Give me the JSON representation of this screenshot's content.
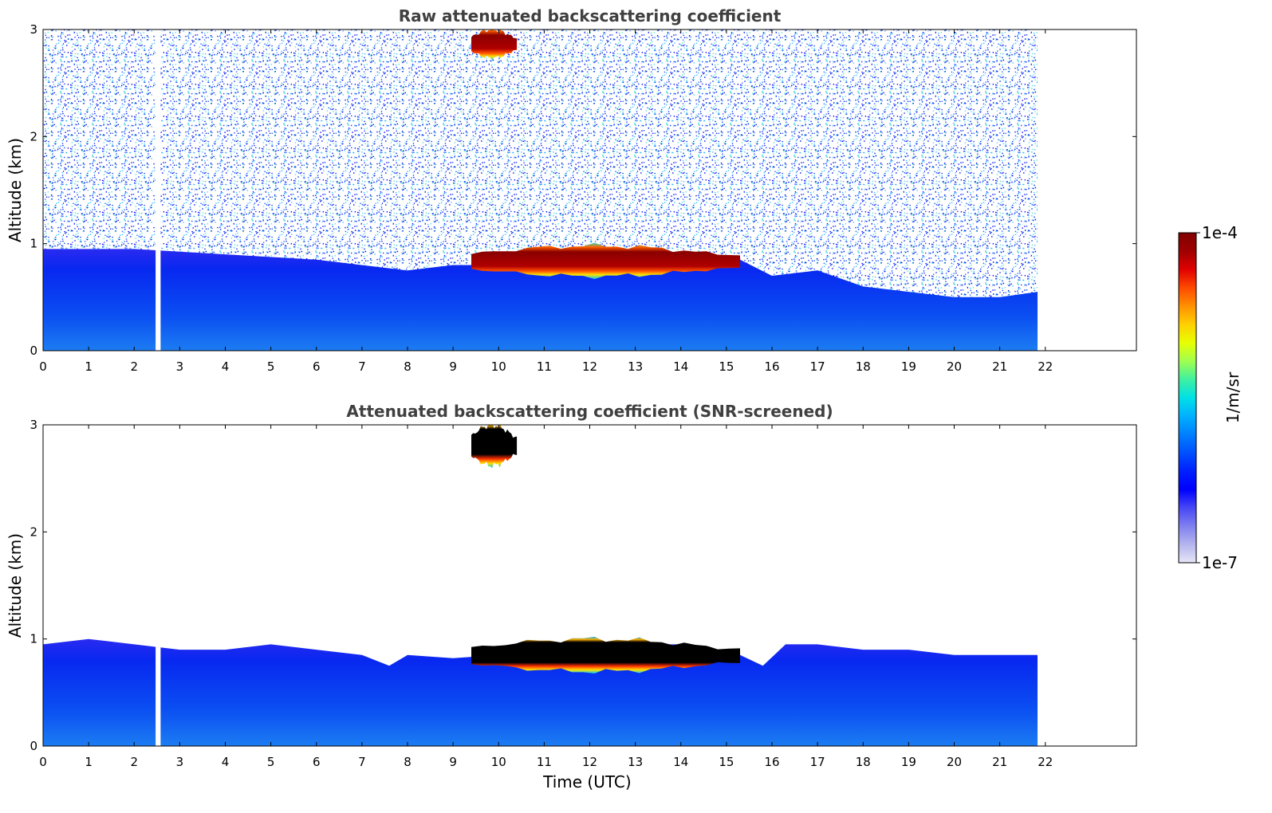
{
  "chart_data": [
    {
      "type": "heatmap",
      "title": "Raw attenuated backscattering coefficient",
      "xlabel": "",
      "ylabel": "Altitude (km)",
      "xlim": [
        0,
        24
      ],
      "ylim": [
        0,
        3
      ],
      "x_ticks": [
        "0",
        "1",
        "2",
        "3",
        "4",
        "5",
        "6",
        "7",
        "8",
        "9",
        "10",
        "11",
        "12",
        "13",
        "14",
        "15",
        "16",
        "17",
        "18",
        "19",
        "20",
        "21",
        "22"
      ],
      "y_ticks": [
        "0",
        "1",
        "2",
        "3"
      ],
      "data_end_hour": 21.83,
      "data_gap_hour": [
        2.47,
        2.58
      ],
      "noisy_background": true,
      "boundary_layer_top_km": [
        [
          0,
          0.95
        ],
        [
          2,
          0.95
        ],
        [
          4,
          0.9
        ],
        [
          6,
          0.85
        ],
        [
          8,
          0.75
        ],
        [
          9,
          0.8
        ],
        [
          10,
          0.8
        ],
        [
          12,
          0.85
        ],
        [
          14,
          0.9
        ],
        [
          15.3,
          0.85
        ],
        [
          16,
          0.7
        ],
        [
          17,
          0.75
        ],
        [
          18,
          0.6
        ],
        [
          19,
          0.55
        ],
        [
          20,
          0.5
        ],
        [
          21,
          0.5
        ],
        [
          21.83,
          0.55
        ]
      ],
      "cloud_layers": [
        {
          "label": "low cloud",
          "start_hour": 9.4,
          "end_hour": 15.3,
          "base_km": 0.68,
          "top_km": 0.98,
          "intensity": "1e-4"
        },
        {
          "label": "upper cloud",
          "start_hour": 9.4,
          "end_hour": 10.4,
          "base_km": 2.72,
          "top_km": 3.0,
          "intensity": "1e-4"
        }
      ]
    },
    {
      "type": "heatmap",
      "title": "Attenuated backscattering coefficient (SNR-screened)",
      "xlabel": "Time (UTC)",
      "ylabel": "Altitude (km)",
      "xlim": [
        0,
        24
      ],
      "ylim": [
        0,
        3
      ],
      "x_ticks": [
        "0",
        "1",
        "2",
        "3",
        "4",
        "5",
        "6",
        "7",
        "8",
        "9",
        "10",
        "11",
        "12",
        "13",
        "14",
        "15",
        "16",
        "17",
        "18",
        "19",
        "20",
        "21",
        "22"
      ],
      "y_ticks": [
        "0",
        "1",
        "2",
        "3"
      ],
      "data_end_hour": 21.83,
      "data_gap_hour": [
        2.47,
        2.58
      ],
      "noisy_background": false,
      "boundary_layer_top_km": [
        [
          0,
          0.95
        ],
        [
          1,
          1.0
        ],
        [
          2,
          0.95
        ],
        [
          3,
          0.9
        ],
        [
          4,
          0.9
        ],
        [
          5,
          0.95
        ],
        [
          6,
          0.9
        ],
        [
          7,
          0.85
        ],
        [
          7.6,
          0.75
        ],
        [
          8,
          0.85
        ],
        [
          9,
          0.82
        ],
        [
          10,
          0.85
        ],
        [
          12,
          0.95
        ],
        [
          14,
          0.95
        ],
        [
          15.3,
          0.85
        ],
        [
          15.8,
          0.75
        ],
        [
          16.3,
          0.95
        ],
        [
          17,
          0.95
        ],
        [
          18,
          0.9
        ],
        [
          19,
          0.9
        ],
        [
          20,
          0.85
        ],
        [
          21,
          0.85
        ],
        [
          21.83,
          0.85
        ]
      ],
      "cloud_layers": [
        {
          "label": "low cloud",
          "start_hour": 9.4,
          "end_hour": 15.3,
          "base_km": 0.68,
          "top_km": 1.0,
          "intensity": "saturated"
        },
        {
          "label": "upper cloud",
          "start_hour": 9.4,
          "end_hour": 10.4,
          "base_km": 2.6,
          "top_km": 3.0,
          "intensity": "saturated"
        }
      ]
    }
  ],
  "colorbar": {
    "label": "1/m/sr",
    "max_label": "1e-4",
    "min_label": "1e-7",
    "scale": "log",
    "colors": [
      "#e6e6f7",
      "#b4b4ee",
      "#8080f0",
      "#4646f5",
      "#0000ff",
      "#0020ff",
      "#0050ff",
      "#0080ff",
      "#00b0ff",
      "#00e0e6",
      "#40f0a0",
      "#a0ff50",
      "#e8ff00",
      "#ffd000",
      "#ff9000",
      "#ff4a00",
      "#e00000",
      "#a00000",
      "#800000"
    ]
  },
  "colors": {
    "cloud_core_screened": "#000000",
    "bl_gradient_top": "#0828f0",
    "bl_gradient_bottom": "#1c7cf2"
  }
}
